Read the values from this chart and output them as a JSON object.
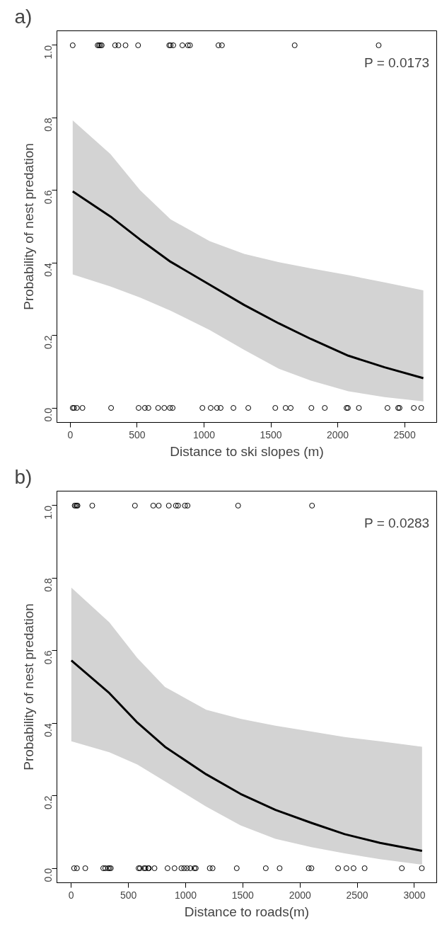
{
  "chart_data": [
    {
      "type": "scatter",
      "title": "a)",
      "xlabel": "Distance to ski slopes (m)",
      "ylabel": "Probability of nest predation",
      "annotations": [
        "P = 0.0173"
      ],
      "xlim": [
        -100,
        2740
      ],
      "ylim": [
        -0.04,
        1.04
      ],
      "xticks": [
        0,
        500,
        1000,
        1500,
        2000,
        2500
      ],
      "yticks": [
        {
          "value": 0,
          "label": "0.0"
        },
        {
          "value": 0.2,
          "label": "0.2"
        },
        {
          "value": 0.4,
          "label": "0.4"
        },
        {
          "value": 0.6,
          "label": "0.6"
        },
        {
          "value": 0.8,
          "label": "0.8"
        },
        {
          "value": 1,
          "label": "1.0"
        }
      ],
      "grid": false,
      "series": [
        {
          "marker": "circle",
          "color": "#000000",
          "x": [
            18,
            205,
            215,
            225,
            235,
            335,
            360,
            413,
            507,
            740,
            750,
            770,
            838,
            880,
            895,
            1108,
            1134,
            1678,
            2306
          ],
          "values": [
            1,
            1,
            1,
            1,
            1,
            1,
            1,
            1,
            1,
            1,
            1,
            1,
            1,
            1,
            1,
            1,
            1,
            1,
            1
          ]
        },
        {
          "marker": "circle",
          "color": "#000000",
          "x": [
            18,
            28,
            49,
            91,
            305,
            511,
            558,
            584,
            657,
            703,
            745,
            765,
            988,
            1050,
            1097,
            1124,
            1220,
            1331,
            1533,
            1610,
            1648,
            1803,
            1903,
            2066,
            2076,
            2158,
            2372,
            2452,
            2462,
            2569,
            2624
          ],
          "values": [
            0,
            0,
            0,
            0,
            0,
            0,
            0,
            0,
            0,
            0,
            0,
            0,
            0,
            0,
            0,
            0,
            0,
            0,
            0,
            0,
            0,
            0,
            0,
            0,
            0,
            0,
            0,
            0,
            0,
            0,
            0
          ]
        },
        {
          "type": "line",
          "color": "#000000",
          "line_style": "solid",
          "x": [
            18,
            300,
            523,
            750,
            1042,
            1300,
            1560,
            1800,
            2079,
            2350,
            2640
          ],
          "values": [
            0.597,
            0.528,
            0.464,
            0.403,
            0.34,
            0.284,
            0.233,
            0.19,
            0.144,
            0.112,
            0.082
          ],
          "upper": [
            0.793,
            0.7,
            0.6,
            0.52,
            0.46,
            0.425,
            0.402,
            0.385,
            0.366,
            0.346,
            0.324
          ],
          "lower": [
            0.368,
            0.335,
            0.304,
            0.268,
            0.215,
            0.16,
            0.108,
            0.075,
            0.046,
            0.03,
            0.018
          ]
        }
      ]
    },
    {
      "type": "scatter",
      "title": "b)",
      "xlabel": "Distance to roads(m)",
      "ylabel": "Probability of nest predation",
      "annotations": [
        "P = 0.0283"
      ],
      "xlim": [
        -125,
        3195
      ],
      "ylim": [
        -0.04,
        1.04
      ],
      "xticks": [
        0,
        500,
        1000,
        1500,
        2000,
        2500,
        3000
      ],
      "yticks": [
        {
          "value": 0,
          "label": "0.0"
        },
        {
          "value": 0.2,
          "label": "0.2"
        },
        {
          "value": 0.4,
          "label": "0.4"
        },
        {
          "value": 0.6,
          "label": "0.6"
        },
        {
          "value": 0.8,
          "label": "0.8"
        },
        {
          "value": 1,
          "label": "1.0"
        }
      ],
      "grid": false,
      "series": [
        {
          "marker": "circle",
          "color": "#000000",
          "x": [
            30,
            40,
            50,
            55,
            184,
            557,
            717,
            765,
            853,
            915,
            934,
            994,
            1017,
            1459,
            2105
          ],
          "values": [
            1,
            1,
            1,
            1,
            1,
            1,
            1,
            1,
            1,
            1,
            1,
            1,
            1,
            1,
            1
          ]
        },
        {
          "marker": "circle",
          "color": "#000000",
          "x": [
            25,
            50,
            123,
            280,
            298,
            322,
            334,
            346,
            589,
            601,
            637,
            649,
            673,
            679,
            728,
            842,
            903,
            963,
            987,
            1012,
            1041,
            1077,
            1089,
            1211,
            1236,
            1447,
            1701,
            1822,
            2076,
            2100,
            2333,
            2406,
            2468,
            2565,
            2890,
            3065
          ],
          "values": [
            0,
            0,
            0,
            0,
            0,
            0,
            0,
            0,
            0,
            0,
            0,
            0,
            0,
            0,
            0,
            0,
            0,
            0,
            0,
            0,
            0,
            0,
            0,
            0,
            0,
            0,
            0,
            0,
            0,
            0,
            0,
            0,
            0,
            0,
            0,
            0
          ]
        },
        {
          "type": "line",
          "color": "#000000",
          "line_style": "solid",
          "x": [
            1,
            333,
            577,
            819,
            1180,
            1480,
            1785,
            2100,
            2390,
            2700,
            3067
          ],
          "values": [
            0.573,
            0.483,
            0.402,
            0.335,
            0.259,
            0.205,
            0.161,
            0.125,
            0.094,
            0.07,
            0.048
          ],
          "upper": [
            0.774,
            0.678,
            0.58,
            0.5,
            0.437,
            0.412,
            0.393,
            0.377,
            0.362,
            0.35,
            0.335
          ],
          "lower": [
            0.35,
            0.32,
            0.286,
            0.24,
            0.17,
            0.118,
            0.081,
            0.058,
            0.041,
            0.025,
            0.01
          ]
        }
      ]
    }
  ]
}
